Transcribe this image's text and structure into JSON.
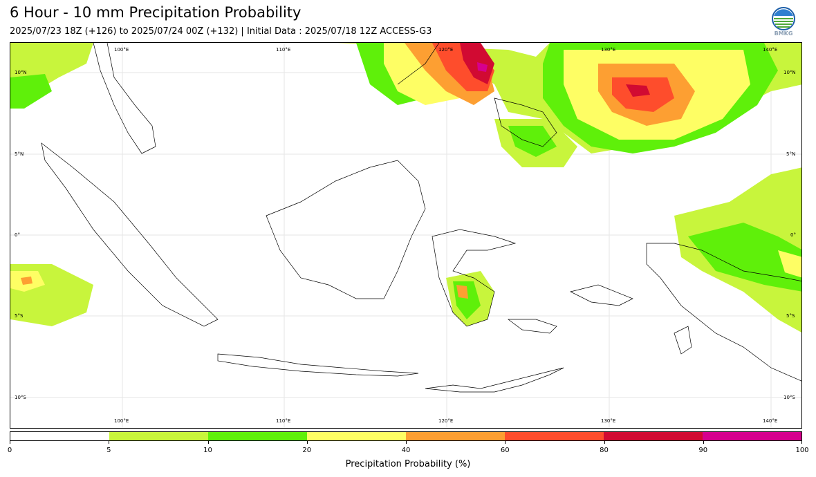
{
  "header": {
    "title": "6 Hour - 10 mm Precipitation Probability",
    "subtitle": "2025/07/23 18Z (+126) to 2025/07/24 00Z (+132) | Initial Data : 2025/07/18 12Z ACCESS-G3",
    "logo_text": "BMKG"
  },
  "map": {
    "lon_labels": [
      "100°E",
      "110°E",
      "120°E",
      "130°E",
      "140°E"
    ],
    "lat_labels": [
      "10°N",
      "5°N",
      "0°",
      "5°S",
      "10°S"
    ]
  },
  "colorbar": {
    "title": "Precipitation Probability (%)",
    "ticks": [
      "0",
      "5",
      "10",
      "20",
      "40",
      "60",
      "80",
      "90",
      "100"
    ],
    "colors": [
      "#ffffff",
      "#c8f53c",
      "#5ff00a",
      "#fefe64",
      "#fd9f32",
      "#fe4d2c",
      "#d10a32",
      "#d6008e"
    ]
  },
  "colors": {
    "land_outline": "#000000",
    "grid": "#e6e6e6"
  }
}
